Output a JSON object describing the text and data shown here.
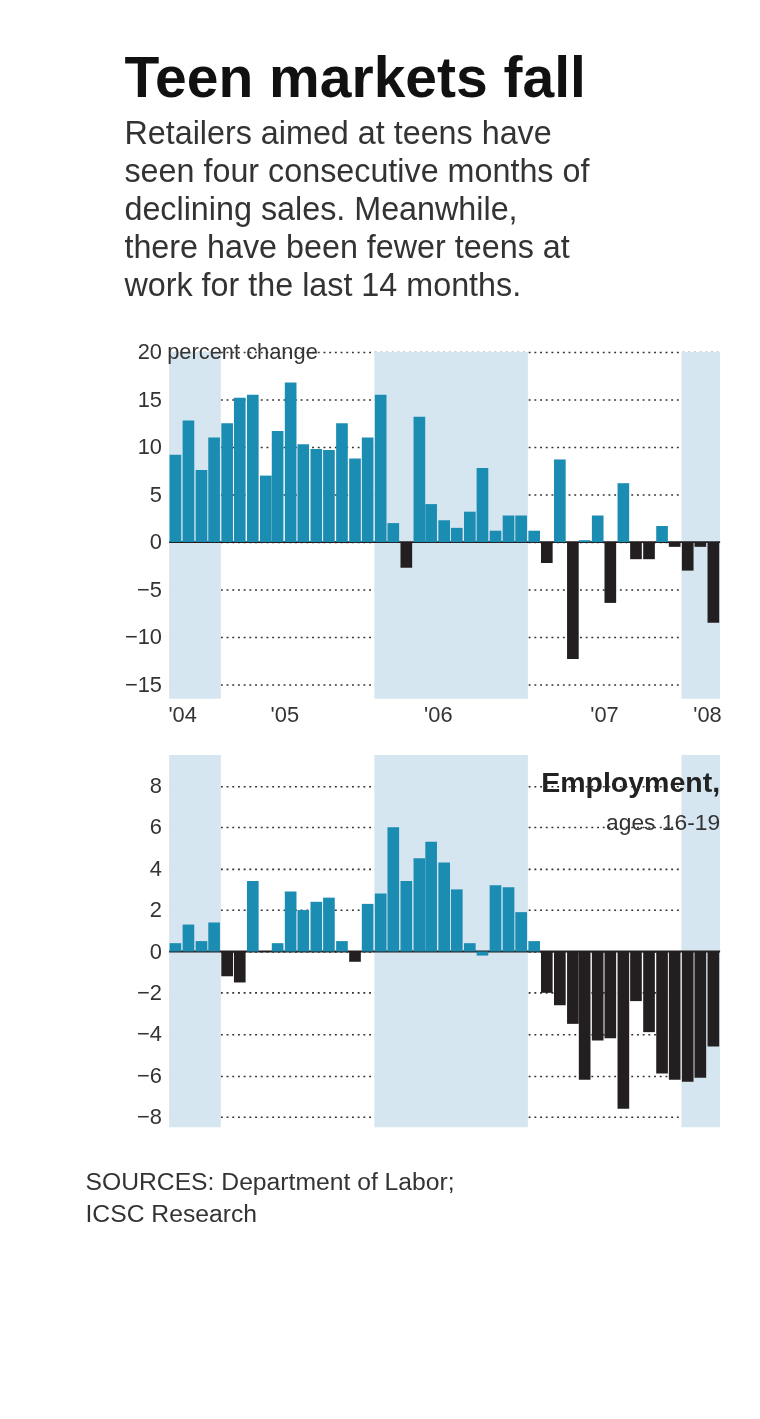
{
  "chart_data": [
    {
      "type": "bar",
      "title": "Teen markets fall",
      "subtitle": "Retailers aimed at teens have seen four consecutive months of declining sales. Meanwhile, there have been fewer teens at work for the last 14 months.",
      "ylabel": "percent change",
      "x": [
        "2004-07-16",
        "2004-08-16",
        "2004-09-16",
        "2004-10-16",
        "2004-11-16",
        "2004-12-16",
        "2005-01-16",
        "2005-02-16",
        "2005-03-16",
        "2005-04-16",
        "2005-05-16",
        "2005-06-16",
        "2005-07-16",
        "2005-08-16",
        "2005-09-16",
        "2005-10-16",
        "2005-11-16",
        "2005-12-16",
        "2006-01-16",
        "2006-02-16",
        "2006-03-16",
        "2006-04-16",
        "2006-05-16",
        "2006-06-16",
        "2006-07-16",
        "2006-08-16",
        "2006-09-16",
        "2006-10-16",
        "2006-11-16",
        "2006-12-16",
        "2007-01-16",
        "2007-02-16",
        "2007-03-16",
        "2007-04-16",
        "2007-05-16",
        "2007-06-16",
        "2007-07-16",
        "2007-08-16",
        "2007-09-16",
        "2007-10-16",
        "2007-11-16",
        "2007-12-16",
        "2008-01-16"
      ],
      "values": [
        9.2,
        12.8,
        7.6,
        11,
        12.5,
        15.2,
        15.5,
        7,
        11.7,
        16.8,
        10.3,
        9.8,
        9.7,
        12.5,
        8.8,
        11,
        15.5,
        2,
        -2.7,
        13.2,
        4,
        2.3,
        1.5,
        3.2,
        7.8,
        1.2,
        2.8,
        2.8,
        1.2,
        -2.2,
        8.7,
        -12.3,
        0.2,
        2.8,
        -6.4,
        6.2,
        -1.8,
        -1.8,
        1.7,
        -0.5,
        -3,
        -0.5,
        -8.5
      ],
      "colors": [
        "#1b8db2",
        "#1b8db2",
        "#1b8db2",
        "#1b8db2",
        "#1b8db2",
        "#1b8db2",
        "#1b8db2",
        "#1b8db2",
        "#1b8db2",
        "#1b8db2",
        "#1b8db2",
        "#1b8db2",
        "#1b8db2",
        "#1b8db2",
        "#1b8db2",
        "#1b8db2",
        "#1b8db2",
        "#1b8db2",
        "#231f20",
        "#1b8db2",
        "#1b8db2",
        "#1b8db2",
        "#1b8db2",
        "#1b8db2",
        "#1b8db2",
        "#1b8db2",
        "#1b8db2",
        "#1b8db2",
        "#1b8db2",
        "#231f20",
        "#1b8db2",
        "#231f20",
        "#1b8db2",
        "#1b8db2",
        "#231f20",
        "#1b8db2",
        "#231f20",
        "#231f20",
        "#1b8db2",
        "#231f20",
        "#231f20",
        "#231f20",
        "#231f20"
      ],
      "xlim": [
        "2004-07-01",
        "2008-02-01"
      ],
      "xticks": [
        {
          "value": "2004-08",
          "label": "'04"
        },
        {
          "value": "2005-04",
          "label": "'05"
        },
        {
          "value": "2006-04",
          "label": "'06"
        },
        {
          "value": "2007-05",
          "label": "'07"
        },
        {
          "value": "2008-01",
          "label": "'08"
        }
      ],
      "ylim": [
        -16.5,
        20
      ],
      "yticks": [
        -15,
        -10,
        -5,
        0,
        5,
        10,
        15,
        20
      ],
      "bands": [
        {
          "axis": "x",
          "from": "2004-07-01",
          "to": "2004-11-01",
          "color": "#d5e6f0"
        },
        {
          "axis": "x",
          "from": "2005-11-01",
          "to": "2006-11-01",
          "color": "#d5e6f0"
        },
        {
          "axis": "x",
          "from": "2007-11-01",
          "to": "2008-02-01",
          "color": "#d5e6f0"
        }
      ],
      "ref_lines": [
        {
          "axis": "y",
          "value": 0,
          "color": "#231f20"
        }
      ],
      "grid": "y"
    },
    {
      "type": "bar",
      "title": "Employment,",
      "subtitle": "ages 16-19",
      "x": [
        "2004-07-16",
        "2004-08-16",
        "2004-09-16",
        "2004-10-16",
        "2004-11-16",
        "2004-12-16",
        "2005-01-16",
        "2005-02-16",
        "2005-03-16",
        "2005-04-16",
        "2005-05-16",
        "2005-06-16",
        "2005-07-16",
        "2005-08-16",
        "2005-09-16",
        "2005-10-16",
        "2005-11-16",
        "2005-12-16",
        "2006-01-16",
        "2006-02-16",
        "2006-03-16",
        "2006-04-16",
        "2006-05-16",
        "2006-06-16",
        "2006-07-16",
        "2006-08-16",
        "2006-09-16",
        "2006-10-16",
        "2006-11-16",
        "2006-12-16",
        "2007-01-16",
        "2007-02-16",
        "2007-03-16",
        "2007-04-16",
        "2007-05-16",
        "2007-06-16",
        "2007-07-16",
        "2007-08-16",
        "2007-09-16",
        "2007-10-16",
        "2007-11-16",
        "2007-12-16",
        "2008-01-16"
      ],
      "values": [
        0.4,
        1.3,
        0.5,
        1.4,
        -1.2,
        -1.5,
        3.4,
        0,
        0.4,
        2.9,
        2.0,
        2.4,
        2.6,
        0.5,
        -0.5,
        2.3,
        2.8,
        6.0,
        3.4,
        4.5,
        5.3,
        4.3,
        3.0,
        0.4,
        -0.2,
        3.2,
        3.1,
        1.9,
        0.5,
        -2.0,
        -2.6,
        -3.5,
        -6.2,
        -4.3,
        -4.2,
        -7.6,
        -2.4,
        -3.9,
        -5.9,
        -6.2,
        -6.3,
        -6.1,
        -4.6
      ],
      "colors": [
        "#1b8db2",
        "#1b8db2",
        "#1b8db2",
        "#1b8db2",
        "#231f20",
        "#231f20",
        "#1b8db2",
        "#1b8db2",
        "#1b8db2",
        "#1b8db2",
        "#1b8db2",
        "#1b8db2",
        "#1b8db2",
        "#1b8db2",
        "#231f20",
        "#1b8db2",
        "#1b8db2",
        "#1b8db2",
        "#1b8db2",
        "#1b8db2",
        "#1b8db2",
        "#1b8db2",
        "#1b8db2",
        "#1b8db2",
        "#1b8db2",
        "#1b8db2",
        "#1b8db2",
        "#1b8db2",
        "#1b8db2",
        "#231f20",
        "#231f20",
        "#231f20",
        "#231f20",
        "#231f20",
        "#231f20",
        "#231f20",
        "#231f20",
        "#231f20",
        "#231f20",
        "#231f20",
        "#231f20",
        "#231f20",
        "#231f20"
      ],
      "xlim": [
        "2004-07-01",
        "2008-02-01"
      ],
      "ylim": [
        -8.5,
        9.5
      ],
      "yticks": [
        -8,
        -6,
        -4,
        -2,
        0,
        2,
        4,
        6,
        8
      ],
      "bands": [
        {
          "axis": "x",
          "from": "2004-07-01",
          "to": "2004-11-01",
          "color": "#d5e6f0"
        },
        {
          "axis": "x",
          "from": "2005-11-01",
          "to": "2006-11-01",
          "color": "#d5e6f0"
        },
        {
          "axis": "x",
          "from": "2007-11-01",
          "to": "2008-02-01",
          "color": "#d5e6f0"
        }
      ],
      "ref_lines": [
        {
          "axis": "y",
          "value": 0,
          "color": "#231f20"
        }
      ],
      "grid": "y",
      "tick_labels": "y",
      "annotations": [
        "SOURCES: Department of Labor; ICSC Research"
      ]
    }
  ]
}
